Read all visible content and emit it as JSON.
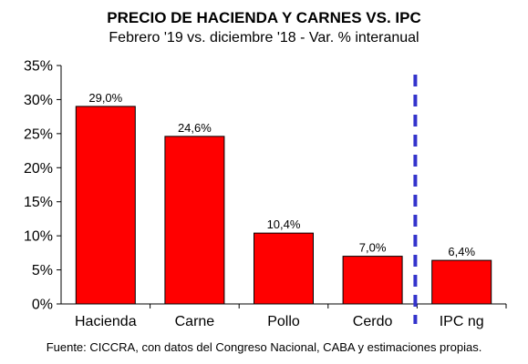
{
  "chart_data": {
    "type": "bar",
    "title": "PRECIO DE HACIENDA Y CARNES VS. IPC",
    "subtitle": "Febrero '19 vs. diciembre '18 - Var. % interanual",
    "source": "Fuente: CICCRA, con datos del Congreso Nacional, CABA y estimaciones propias.",
    "categories": [
      "Hacienda",
      "Carne",
      "Pollo",
      "Cerdo",
      "IPC ng"
    ],
    "values": [
      29.0,
      24.6,
      10.4,
      7.0,
      6.4
    ],
    "value_labels": [
      "29,0%",
      "24,6%",
      "10,4%",
      "7,0%",
      "6,4%"
    ],
    "ylim": [
      0,
      35
    ],
    "yticks": [
      0,
      5,
      10,
      15,
      20,
      25,
      30,
      35
    ],
    "ytick_labels": [
      "0%",
      "5%",
      "10%",
      "15%",
      "20%",
      "25%",
      "30%",
      "35%"
    ],
    "bar_color": "#ff0000",
    "separator_color": "#3333cc",
    "grid": false,
    "legend": "none"
  }
}
